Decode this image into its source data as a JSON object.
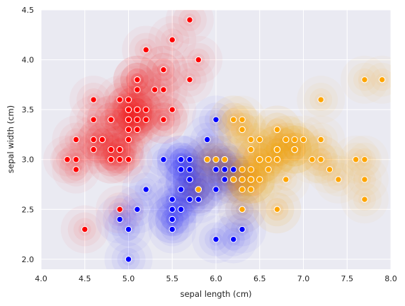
{
  "chart_data": {
    "type": "scatter",
    "title": "",
    "xlabel": "sepal length (cm)",
    "ylabel": "sepal width (cm)",
    "xlim": [
      4.0,
      8.0
    ],
    "ylim": [
      1.9,
      4.5
    ],
    "xticks": [
      "4.0",
      "4.5",
      "5.0",
      "5.5",
      "6.0",
      "6.5",
      "7.0",
      "7.5",
      "8.0"
    ],
    "yticks": [
      "2.0",
      "2.5",
      "3.0",
      "3.5",
      "4.0",
      "4.5"
    ],
    "grid": true,
    "background": "#eaeaf2",
    "overlay": "kde-density-contours",
    "series": [
      {
        "color": "#ff0000",
        "points": [
          [
            5.1,
            3.5
          ],
          [
            4.9,
            3.0
          ],
          [
            4.7,
            3.2
          ],
          [
            4.6,
            3.1
          ],
          [
            5.0,
            3.6
          ],
          [
            5.4,
            3.9
          ],
          [
            4.6,
            3.4
          ],
          [
            5.0,
            3.4
          ],
          [
            4.4,
            2.9
          ],
          [
            4.9,
            3.1
          ],
          [
            5.4,
            3.7
          ],
          [
            4.8,
            3.4
          ],
          [
            4.8,
            3.0
          ],
          [
            4.3,
            3.0
          ],
          [
            5.8,
            4.0
          ],
          [
            5.7,
            4.4
          ],
          [
            5.4,
            3.9
          ],
          [
            5.1,
            3.5
          ],
          [
            5.7,
            3.8
          ],
          [
            5.1,
            3.8
          ],
          [
            5.4,
            3.4
          ],
          [
            5.1,
            3.7
          ],
          [
            4.6,
            3.6
          ],
          [
            5.1,
            3.3
          ],
          [
            4.8,
            3.4
          ],
          [
            5.0,
            3.0
          ],
          [
            5.0,
            3.4
          ],
          [
            5.2,
            3.5
          ],
          [
            5.2,
            3.4
          ],
          [
            4.7,
            3.2
          ],
          [
            4.8,
            3.1
          ],
          [
            5.4,
            3.4
          ],
          [
            5.2,
            4.1
          ],
          [
            5.5,
            4.2
          ],
          [
            4.9,
            3.1
          ],
          [
            5.0,
            3.2
          ],
          [
            5.5,
            3.5
          ],
          [
            4.9,
            3.6
          ],
          [
            4.4,
            3.0
          ],
          [
            5.1,
            3.4
          ],
          [
            5.0,
            3.5
          ],
          [
            4.5,
            2.3
          ],
          [
            4.4,
            3.2
          ],
          [
            5.0,
            3.5
          ],
          [
            5.1,
            3.8
          ],
          [
            4.8,
            3.0
          ],
          [
            5.1,
            3.8
          ],
          [
            4.6,
            3.2
          ],
          [
            5.3,
            3.7
          ],
          [
            5.0,
            3.3
          ],
          [
            4.9,
            2.5
          ]
        ]
      },
      {
        "color": "#0000ff",
        "points": [
          [
            5.5,
            2.3
          ],
          [
            5.7,
            2.8
          ],
          [
            4.9,
            2.4
          ],
          [
            5.2,
            2.7
          ],
          [
            5.0,
            2.0
          ],
          [
            5.9,
            3.0
          ],
          [
            6.0,
            2.2
          ],
          [
            5.6,
            2.9
          ],
          [
            5.6,
            3.0
          ],
          [
            5.8,
            2.7
          ],
          [
            6.2,
            2.2
          ],
          [
            5.6,
            2.5
          ],
          [
            5.9,
            3.2
          ],
          [
            6.1,
            2.8
          ],
          [
            5.7,
            2.6
          ],
          [
            5.5,
            2.4
          ],
          [
            5.8,
            2.7
          ],
          [
            5.4,
            3.0
          ],
          [
            6.0,
            3.4
          ],
          [
            6.3,
            2.3
          ],
          [
            5.6,
            3.0
          ],
          [
            5.5,
            2.5
          ],
          [
            5.5,
            2.6
          ],
          [
            6.1,
            3.0
          ],
          [
            5.8,
            2.6
          ],
          [
            5.0,
            2.3
          ],
          [
            5.6,
            2.7
          ],
          [
            5.7,
            3.0
          ],
          [
            5.7,
            2.9
          ],
          [
            6.2,
            2.9
          ],
          [
            5.1,
            2.5
          ],
          [
            5.7,
            2.8
          ],
          [
            6.0,
            2.9
          ],
          [
            6.1,
            2.9
          ],
          [
            6.0,
            2.7
          ],
          [
            5.5,
            2.4
          ],
          [
            6.2,
            2.8
          ],
          [
            6.0,
            3.0
          ],
          [
            6.3,
            2.5
          ],
          [
            6.3,
            2.8
          ]
        ]
      },
      {
        "color": "#ffa500",
        "points": [
          [
            7.0,
            3.2
          ],
          [
            6.4,
            3.2
          ],
          [
            6.9,
            3.1
          ],
          [
            6.5,
            2.8
          ],
          [
            6.3,
            3.3
          ],
          [
            6.6,
            2.9
          ],
          [
            6.6,
            3.0
          ],
          [
            6.8,
            2.8
          ],
          [
            6.7,
            3.0
          ],
          [
            6.7,
            3.1
          ],
          [
            6.4,
            2.9
          ],
          [
            6.7,
            3.1
          ],
          [
            6.3,
            2.7
          ],
          [
            6.5,
            3.0
          ],
          [
            6.4,
            2.7
          ],
          [
            6.8,
            3.2
          ],
          [
            6.7,
            2.5
          ],
          [
            7.2,
            3.6
          ],
          [
            6.5,
            3.2
          ],
          [
            6.4,
            2.8
          ],
          [
            7.7,
            3.8
          ],
          [
            7.7,
            2.6
          ],
          [
            6.9,
            3.2
          ],
          [
            7.7,
            2.8
          ],
          [
            6.7,
            3.3
          ],
          [
            7.2,
            3.2
          ],
          [
            6.2,
            2.8
          ],
          [
            6.1,
            3.0
          ],
          [
            6.4,
            2.8
          ],
          [
            7.2,
            3.0
          ],
          [
            7.4,
            2.8
          ],
          [
            7.9,
            3.8
          ],
          [
            6.4,
            2.8
          ],
          [
            6.3,
            2.8
          ],
          [
            7.7,
            3.0
          ],
          [
            6.3,
            3.4
          ],
          [
            6.4,
            3.1
          ],
          [
            6.0,
            3.0
          ],
          [
            6.9,
            3.1
          ],
          [
            6.7,
            3.1
          ],
          [
            6.9,
            3.1
          ],
          [
            5.8,
            2.7
          ],
          [
            6.8,
            3.2
          ],
          [
            6.7,
            3.3
          ],
          [
            6.7,
            3.0
          ],
          [
            6.3,
            2.5
          ],
          [
            6.5,
            3.0
          ],
          [
            6.2,
            3.4
          ],
          [
            5.9,
            3.0
          ],
          [
            6.2,
            3.4
          ],
          [
            6.3,
            2.9
          ],
          [
            6.5,
            3.0
          ],
          [
            7.1,
            3.0
          ],
          [
            6.4,
            2.8
          ],
          [
            7.6,
            3.0
          ],
          [
            7.3,
            2.9
          ],
          [
            6.7,
            2.5
          ],
          [
            7.2,
            3.0
          ],
          [
            6.9,
            3.1
          ],
          [
            6.3,
            3.3
          ]
        ]
      }
    ]
  }
}
